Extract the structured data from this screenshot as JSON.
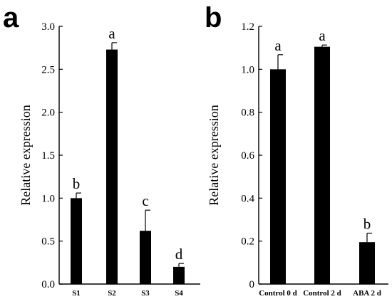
{
  "chart_data": [
    {
      "type": "bar",
      "panel": "a",
      "ylabel": "Relative expression",
      "categories": [
        "S1",
        "S2",
        "S3",
        "S4"
      ],
      "values": [
        1.0,
        2.73,
        0.62,
        0.2
      ],
      "errors": [
        0.06,
        0.08,
        0.24,
        0.04
      ],
      "significance": [
        "b",
        "a",
        "c",
        "d"
      ],
      "ylim": [
        0,
        3.0
      ],
      "yticks": [
        "0.0",
        "0.5",
        "1.0",
        "1.5",
        "2.0",
        "2.5",
        "3.0"
      ],
      "bar_color": "#000000",
      "grid": false
    },
    {
      "type": "bar",
      "panel": "b",
      "ylabel": "Relative expression",
      "categories": [
        "Control 0 d",
        "Control 2 d",
        "ABA 2 d"
      ],
      "values": [
        1.0,
        1.105,
        0.195
      ],
      "errors": [
        0.068,
        0.008,
        0.042
      ],
      "significance": [
        "a",
        "a",
        "b"
      ],
      "ylim": [
        0,
        1.2
      ],
      "yticks": [
        "0",
        "0.2",
        "0.4",
        "0.6",
        "0.8",
        "1.0",
        "1.2"
      ],
      "bar_color": "#000000",
      "grid": false
    }
  ]
}
